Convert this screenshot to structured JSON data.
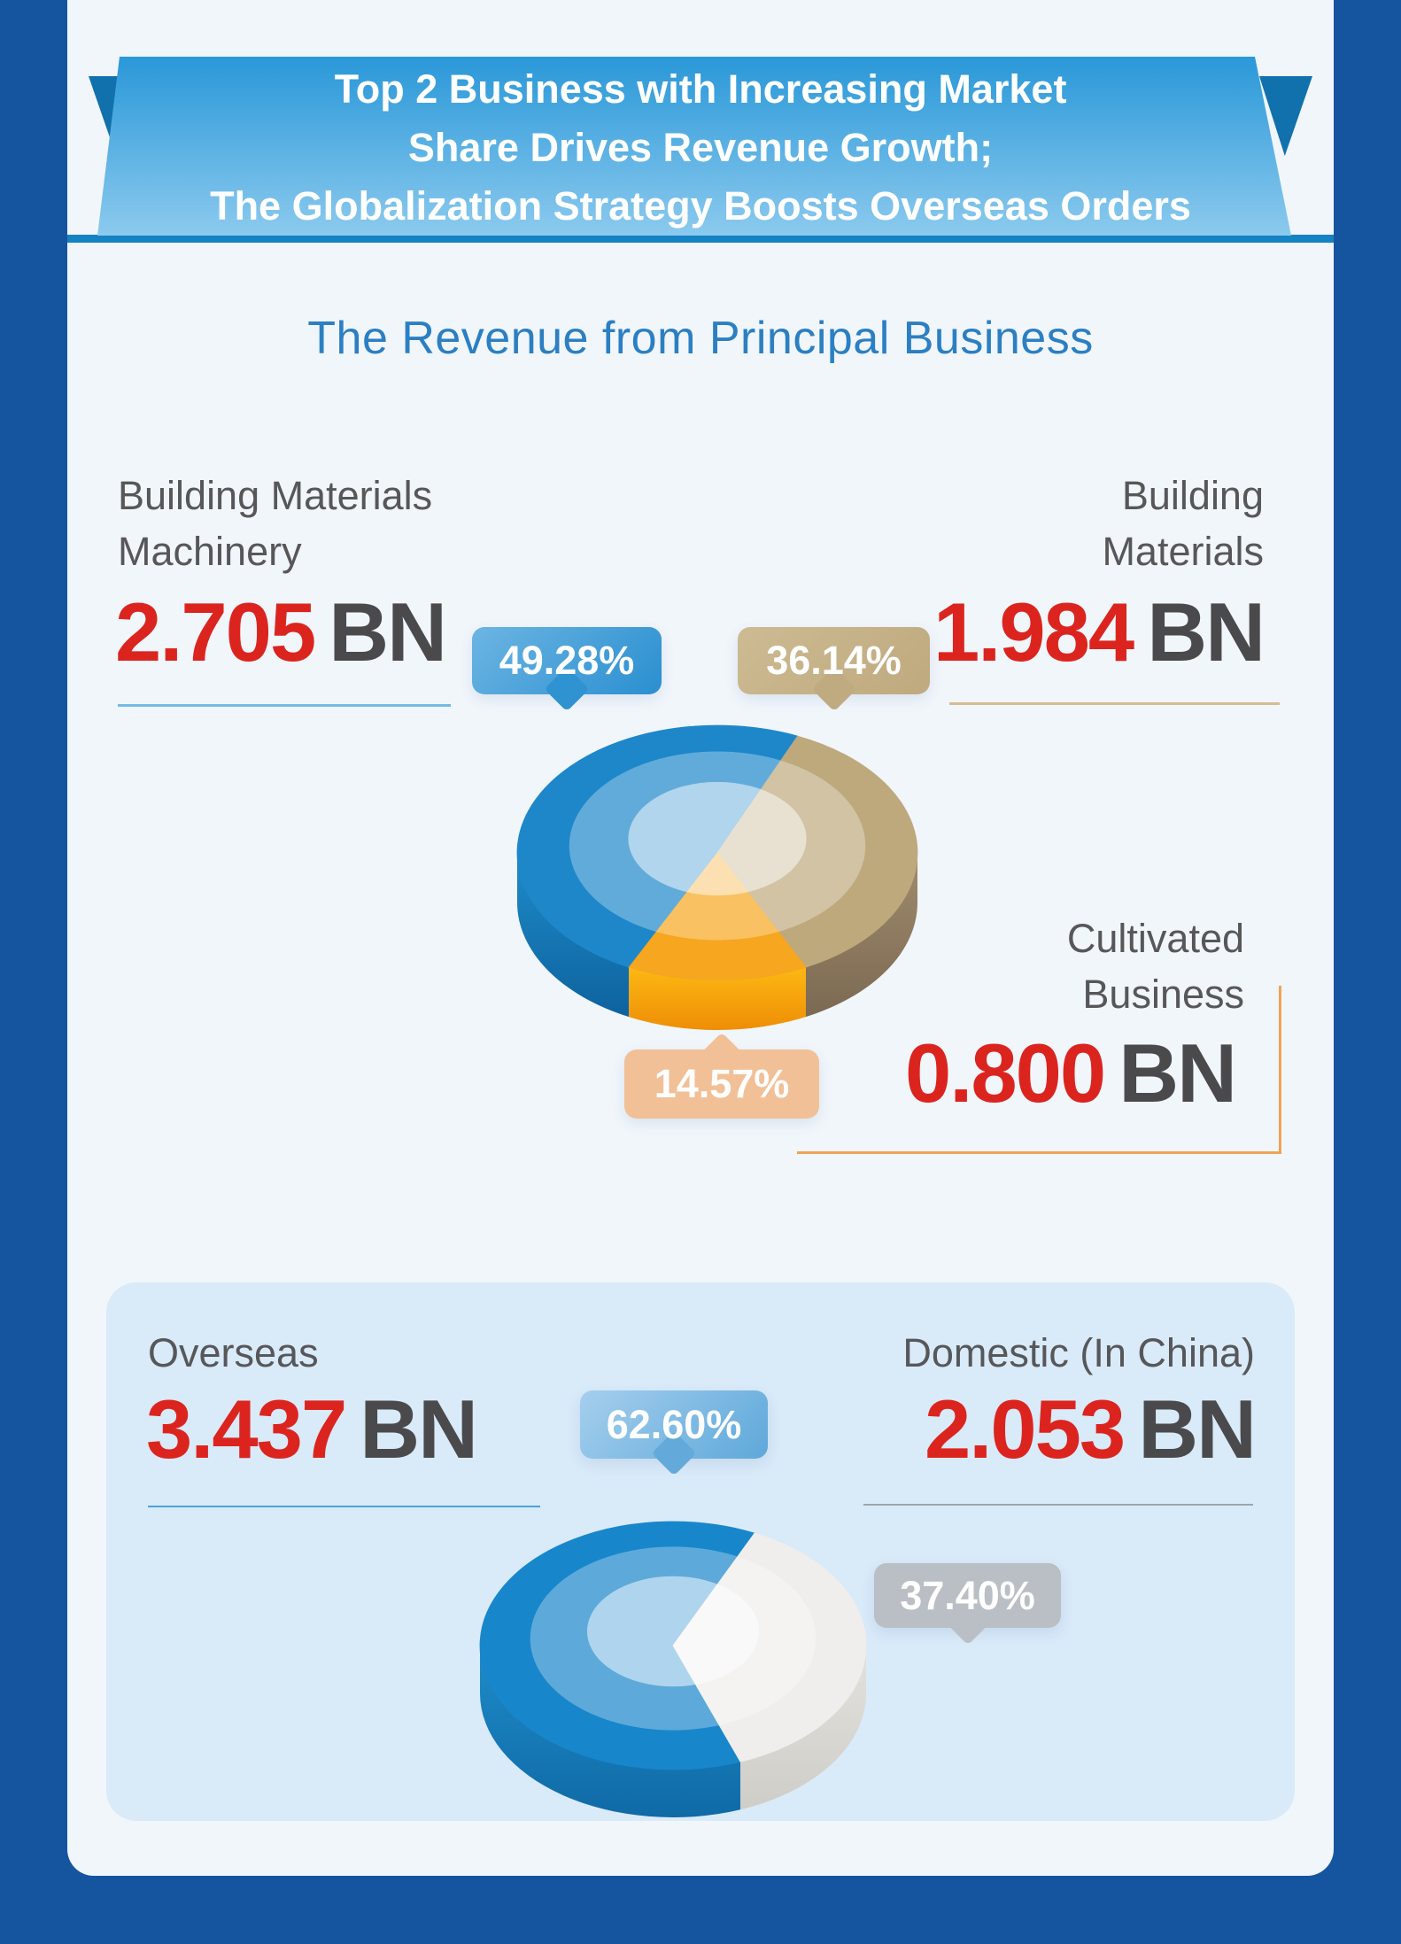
{
  "banner": {
    "line1": "Top 2 Business with Increasing Market",
    "line2": "Share Drives Revenue Growth;",
    "line3": "The Globalization Strategy Boosts Overseas Orders"
  },
  "section1": {
    "title": "The Revenue from Principal Business",
    "left": {
      "label1": "Building Materials",
      "label2": "Machinery",
      "value": "2.705",
      "unit": "BN",
      "pct": "49.28%"
    },
    "right": {
      "label1": "Building",
      "label2": "Materials",
      "value": "1.984",
      "unit": "BN",
      "pct": "36.14%"
    },
    "bottom": {
      "label1": "Cultivated",
      "label2": "Business",
      "value": "0.800",
      "unit": "BN",
      "pct": "14.57%"
    }
  },
  "section2": {
    "left": {
      "label": "Overseas",
      "value": "3.437",
      "unit": "BN",
      "pct": "62.60%"
    },
    "right": {
      "label": "Domestic (In China)",
      "value": "2.053",
      "unit": "BN",
      "pct": "37.40%"
    }
  },
  "palette": {
    "frame_blue": "#15549f",
    "banner_blue_top": "#2a98d8",
    "banner_blue_bottom": "#8ccaee",
    "banner_strip": "#1583c3",
    "title_blue": "#2b7fc2",
    "label_gray": "#57575a",
    "accent_red": "#dc241f",
    "unit_gray": "#4a4a4c",
    "card_bg": "#d9eaf9",
    "orange_bracket": "#f0a355"
  },
  "chart_data": [
    {
      "type": "pie",
      "title": "The Revenue from Principal Business",
      "unit": "BN",
      "slices": [
        {
          "label": "Building Materials Machinery",
          "pct": 49.28,
          "value": 2.705,
          "color": "#1d87ca"
        },
        {
          "label": "Building Materials",
          "pct": 36.14,
          "value": 1.984,
          "color": "#bea97c"
        },
        {
          "label": "Cultivated Business",
          "pct": 14.57,
          "value": 0.8,
          "color": "#f6a61f"
        }
      ]
    },
    {
      "type": "pie",
      "title": "Overseas vs Domestic Revenue",
      "unit": "BN",
      "slices": [
        {
          "label": "Overseas",
          "pct": 62.6,
          "value": 3.437,
          "color": "#1886cb"
        },
        {
          "label": "Domestic (In China)",
          "pct": 37.4,
          "value": 2.053,
          "color": "#efeeec"
        }
      ]
    }
  ]
}
